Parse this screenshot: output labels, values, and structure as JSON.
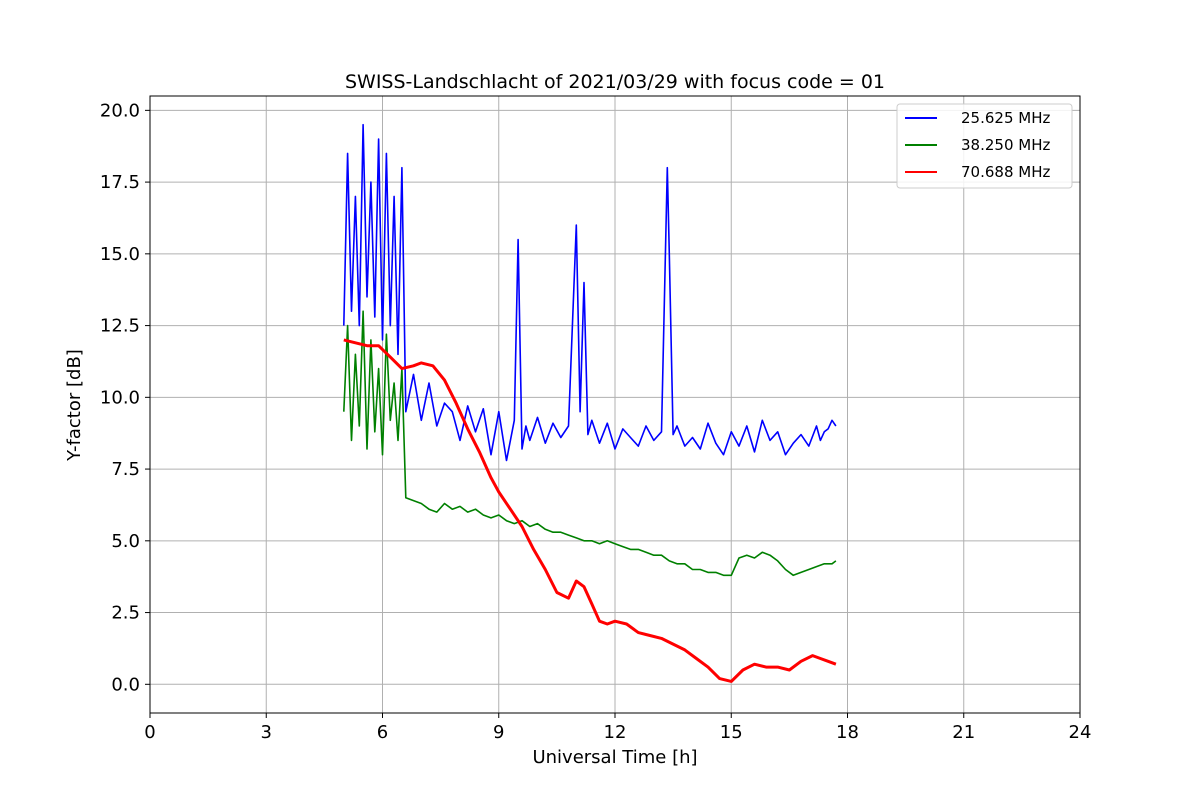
{
  "chart_data": {
    "type": "line",
    "title": "SWISS-Landschlacht of 2021/03/29 with focus code = 01",
    "xlabel": "Universal Time [h]",
    "ylabel": "Y-factor [dB]",
    "xlim": [
      0,
      24
    ],
    "ylim": [
      -1.0,
      20.5
    ],
    "xticks": [
      "0",
      "3",
      "6",
      "9",
      "12",
      "15",
      "18",
      "21",
      "24"
    ],
    "yticks": [
      "0.0",
      "2.5",
      "5.0",
      "7.5",
      "10.0",
      "12.5",
      "15.0",
      "17.5",
      "20.0"
    ],
    "grid": true,
    "legend_position": "top-right",
    "series": [
      {
        "name": "25.625 MHz",
        "color": "#0000ff",
        "x": [
          5.0,
          5.1,
          5.2,
          5.3,
          5.4,
          5.5,
          5.6,
          5.7,
          5.8,
          5.9,
          6.0,
          6.1,
          6.2,
          6.3,
          6.4,
          6.5,
          6.6,
          6.8,
          7.0,
          7.2,
          7.4,
          7.6,
          7.8,
          8.0,
          8.2,
          8.4,
          8.6,
          8.8,
          9.0,
          9.2,
          9.4,
          9.5,
          9.6,
          9.7,
          9.8,
          10.0,
          10.2,
          10.4,
          10.6,
          10.8,
          11.0,
          11.1,
          11.2,
          11.3,
          11.4,
          11.6,
          11.8,
          12.0,
          12.2,
          12.4,
          12.6,
          12.8,
          13.0,
          13.2,
          13.35,
          13.4,
          13.5,
          13.6,
          13.8,
          14.0,
          14.2,
          14.4,
          14.6,
          14.8,
          15.0,
          15.2,
          15.4,
          15.6,
          15.8,
          16.0,
          16.2,
          16.4,
          16.6,
          16.8,
          17.0,
          17.2,
          17.3,
          17.4,
          17.5,
          17.6,
          17.7
        ],
        "values": [
          12.5,
          18.5,
          13.0,
          17.0,
          12.5,
          19.5,
          13.5,
          17.5,
          12.8,
          19.0,
          12.0,
          18.5,
          12.5,
          17.0,
          11.5,
          18.0,
          9.5,
          10.8,
          9.2,
          10.5,
          9.0,
          9.8,
          9.5,
          8.5,
          9.7,
          8.8,
          9.6,
          8.0,
          9.5,
          7.8,
          9.2,
          15.5,
          8.2,
          9.0,
          8.5,
          9.3,
          8.4,
          9.1,
          8.6,
          9.0,
          16.0,
          9.5,
          14.0,
          8.7,
          9.2,
          8.4,
          9.1,
          8.2,
          8.9,
          8.6,
          8.3,
          9.0,
          8.5,
          8.8,
          18.0,
          15.0,
          8.7,
          9.0,
          8.3,
          8.6,
          8.2,
          9.1,
          8.4,
          8.0,
          8.8,
          8.3,
          9.0,
          8.1,
          9.2,
          8.5,
          8.8,
          8.0,
          8.4,
          8.7,
          8.3,
          9.0,
          8.5,
          8.8,
          8.9,
          9.2,
          9.0
        ]
      },
      {
        "name": "38.250 MHz",
        "color": "#008000",
        "x": [
          5.0,
          5.1,
          5.2,
          5.3,
          5.4,
          5.5,
          5.6,
          5.7,
          5.8,
          5.9,
          6.0,
          6.1,
          6.2,
          6.3,
          6.4,
          6.5,
          6.6,
          6.8,
          7.0,
          7.2,
          7.4,
          7.6,
          7.8,
          8.0,
          8.2,
          8.4,
          8.6,
          8.8,
          9.0,
          9.2,
          9.4,
          9.6,
          9.8,
          10.0,
          10.2,
          10.4,
          10.6,
          10.8,
          11.0,
          11.2,
          11.4,
          11.6,
          11.8,
          12.0,
          12.2,
          12.4,
          12.6,
          12.8,
          13.0,
          13.2,
          13.4,
          13.6,
          13.8,
          14.0,
          14.2,
          14.4,
          14.6,
          14.8,
          15.0,
          15.2,
          15.4,
          15.6,
          15.8,
          16.0,
          16.2,
          16.4,
          16.6,
          16.8,
          17.0,
          17.2,
          17.4,
          17.6,
          17.7
        ],
        "values": [
          9.5,
          12.5,
          8.5,
          11.5,
          9.0,
          13.0,
          8.2,
          12.0,
          8.8,
          11.0,
          8.0,
          12.2,
          9.2,
          10.5,
          8.5,
          11.0,
          6.5,
          6.4,
          6.3,
          6.1,
          6.0,
          6.3,
          6.1,
          6.2,
          6.0,
          6.1,
          5.9,
          5.8,
          5.9,
          5.7,
          5.6,
          5.7,
          5.5,
          5.6,
          5.4,
          5.3,
          5.3,
          5.2,
          5.1,
          5.0,
          5.0,
          4.9,
          5.0,
          4.9,
          4.8,
          4.7,
          4.7,
          4.6,
          4.5,
          4.5,
          4.3,
          4.2,
          4.2,
          4.0,
          4.0,
          3.9,
          3.9,
          3.8,
          3.8,
          4.4,
          4.5,
          4.4,
          4.6,
          4.5,
          4.3,
          4.0,
          3.8,
          3.9,
          4.0,
          4.1,
          4.2,
          4.2,
          4.3
        ]
      },
      {
        "name": "70.688 MHz",
        "color": "#ff0000",
        "x": [
          5.0,
          5.3,
          5.6,
          5.9,
          6.2,
          6.5,
          6.8,
          7.0,
          7.3,
          7.6,
          7.9,
          8.2,
          8.5,
          8.8,
          9.0,
          9.3,
          9.6,
          9.9,
          10.2,
          10.5,
          10.8,
          11.0,
          11.2,
          11.4,
          11.6,
          11.8,
          12.0,
          12.3,
          12.6,
          12.9,
          13.2,
          13.5,
          13.8,
          14.1,
          14.4,
          14.7,
          15.0,
          15.3,
          15.6,
          15.9,
          16.2,
          16.5,
          16.8,
          17.1,
          17.3,
          17.5,
          17.7
        ],
        "values": [
          12.0,
          11.9,
          11.8,
          11.8,
          11.4,
          11.0,
          11.1,
          11.2,
          11.1,
          10.6,
          9.8,
          8.9,
          8.1,
          7.2,
          6.7,
          6.1,
          5.5,
          4.7,
          4.0,
          3.2,
          3.0,
          3.6,
          3.4,
          2.8,
          2.2,
          2.1,
          2.2,
          2.1,
          1.8,
          1.7,
          1.6,
          1.4,
          1.2,
          0.9,
          0.6,
          0.2,
          0.1,
          0.5,
          0.7,
          0.6,
          0.6,
          0.5,
          0.8,
          1.0,
          0.9,
          0.8,
          0.7
        ]
      }
    ]
  }
}
